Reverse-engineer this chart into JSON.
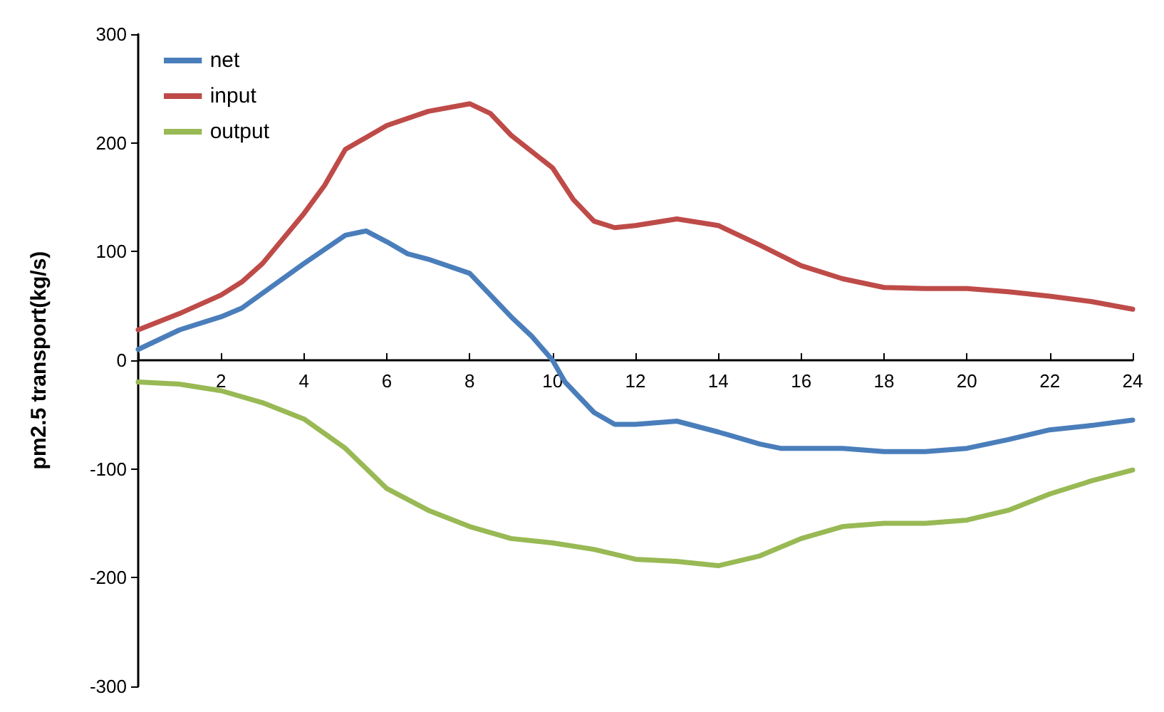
{
  "chart_data": {
    "type": "line",
    "ylabel": "pm2.5 transport(kg/s)",
    "xlim": [
      0,
      24
    ],
    "xticks": [
      {
        "value": 0,
        "label": null
      },
      2,
      4,
      6,
      8,
      10,
      12,
      14,
      16,
      18,
      20,
      22,
      24
    ],
    "ylim": [
      -300,
      300
    ],
    "yticks": [
      -300,
      -200,
      -100,
      0,
      100,
      200,
      300
    ],
    "grid": false,
    "legend": "top left",
    "marker": "none",
    "line_style": "solid",
    "series": [
      {
        "name": "net",
        "color": "#4a7ebb",
        "x": [
          0,
          1,
          2,
          2.5,
          4,
          5,
          5.5,
          6,
          6.5,
          7,
          8,
          9,
          9.5,
          10,
          10.3,
          11,
          11.5,
          12,
          13,
          14,
          15,
          15.5,
          16,
          17,
          18,
          19,
          20,
          21,
          22,
          23,
          24
        ],
        "values": [
          10,
          28,
          40,
          48,
          89,
          115,
          119,
          109,
          98,
          93,
          80,
          40,
          22,
          0,
          -20,
          -48,
          -59,
          -59,
          -56,
          -66,
          -77,
          -81,
          -81,
          -81,
          -84,
          -84,
          -81,
          -73,
          -64,
          -60,
          -55
        ]
      },
      {
        "name": "input",
        "color": "#be4b48",
        "x": [
          0,
          1,
          2,
          2.5,
          3,
          4,
          4.5,
          5,
          6,
          7,
          8,
          8.5,
          9,
          10,
          10.5,
          11,
          11.5,
          12,
          13,
          14,
          15,
          16,
          17,
          18,
          19,
          20,
          21,
          22,
          23,
          24
        ],
        "values": [
          28,
          43,
          60,
          72,
          89,
          135,
          161,
          194,
          216,
          229,
          236,
          227,
          207,
          177,
          148,
          128,
          122,
          124,
          130,
          124,
          106,
          87,
          75,
          67,
          66,
          66,
          63,
          59,
          54,
          47
        ]
      },
      {
        "name": "output",
        "color": "#98b954",
        "x": [
          0,
          1,
          2,
          3,
          4,
          5,
          6,
          7,
          8,
          9,
          10,
          11,
          12,
          13,
          14,
          15,
          16,
          17,
          18,
          19,
          20,
          21,
          22,
          23,
          24
        ],
        "values": [
          -20,
          -22,
          -28,
          -39,
          -54,
          -81,
          -118,
          -138,
          -153,
          -164,
          -168,
          -174,
          -183,
          -185,
          -189,
          -180,
          -164,
          -153,
          -150,
          -150,
          -147,
          -138,
          -123,
          -111,
          -101
        ]
      }
    ]
  }
}
